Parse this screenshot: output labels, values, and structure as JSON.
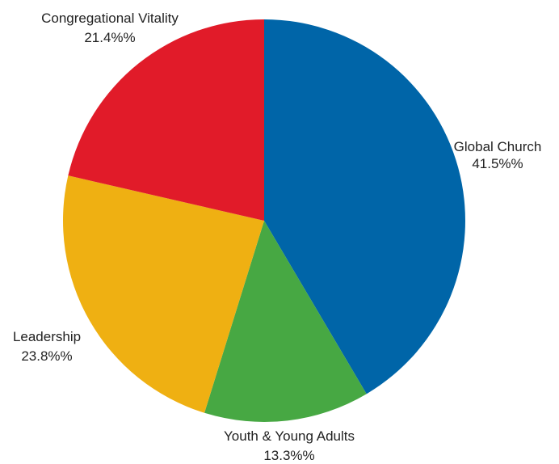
{
  "chart_data": {
    "type": "pie",
    "title": "",
    "start_angle_deg": 0,
    "direction": "clockwise",
    "slices": [
      {
        "label": "Global Church",
        "value": 41.5,
        "value_label": "41.5%%",
        "color": "#0065A8"
      },
      {
        "label": "Youth & Young Adults",
        "value": 13.3,
        "value_label": "13.3%%",
        "color": "#47A843"
      },
      {
        "label": "Leadership",
        "value": 23.8,
        "value_label": "23.8%%",
        "color": "#EFB012"
      },
      {
        "label": "Congregational Vitality",
        "value": 21.4,
        "value_label": "21.4%%",
        "color": "#E11B29"
      }
    ]
  }
}
